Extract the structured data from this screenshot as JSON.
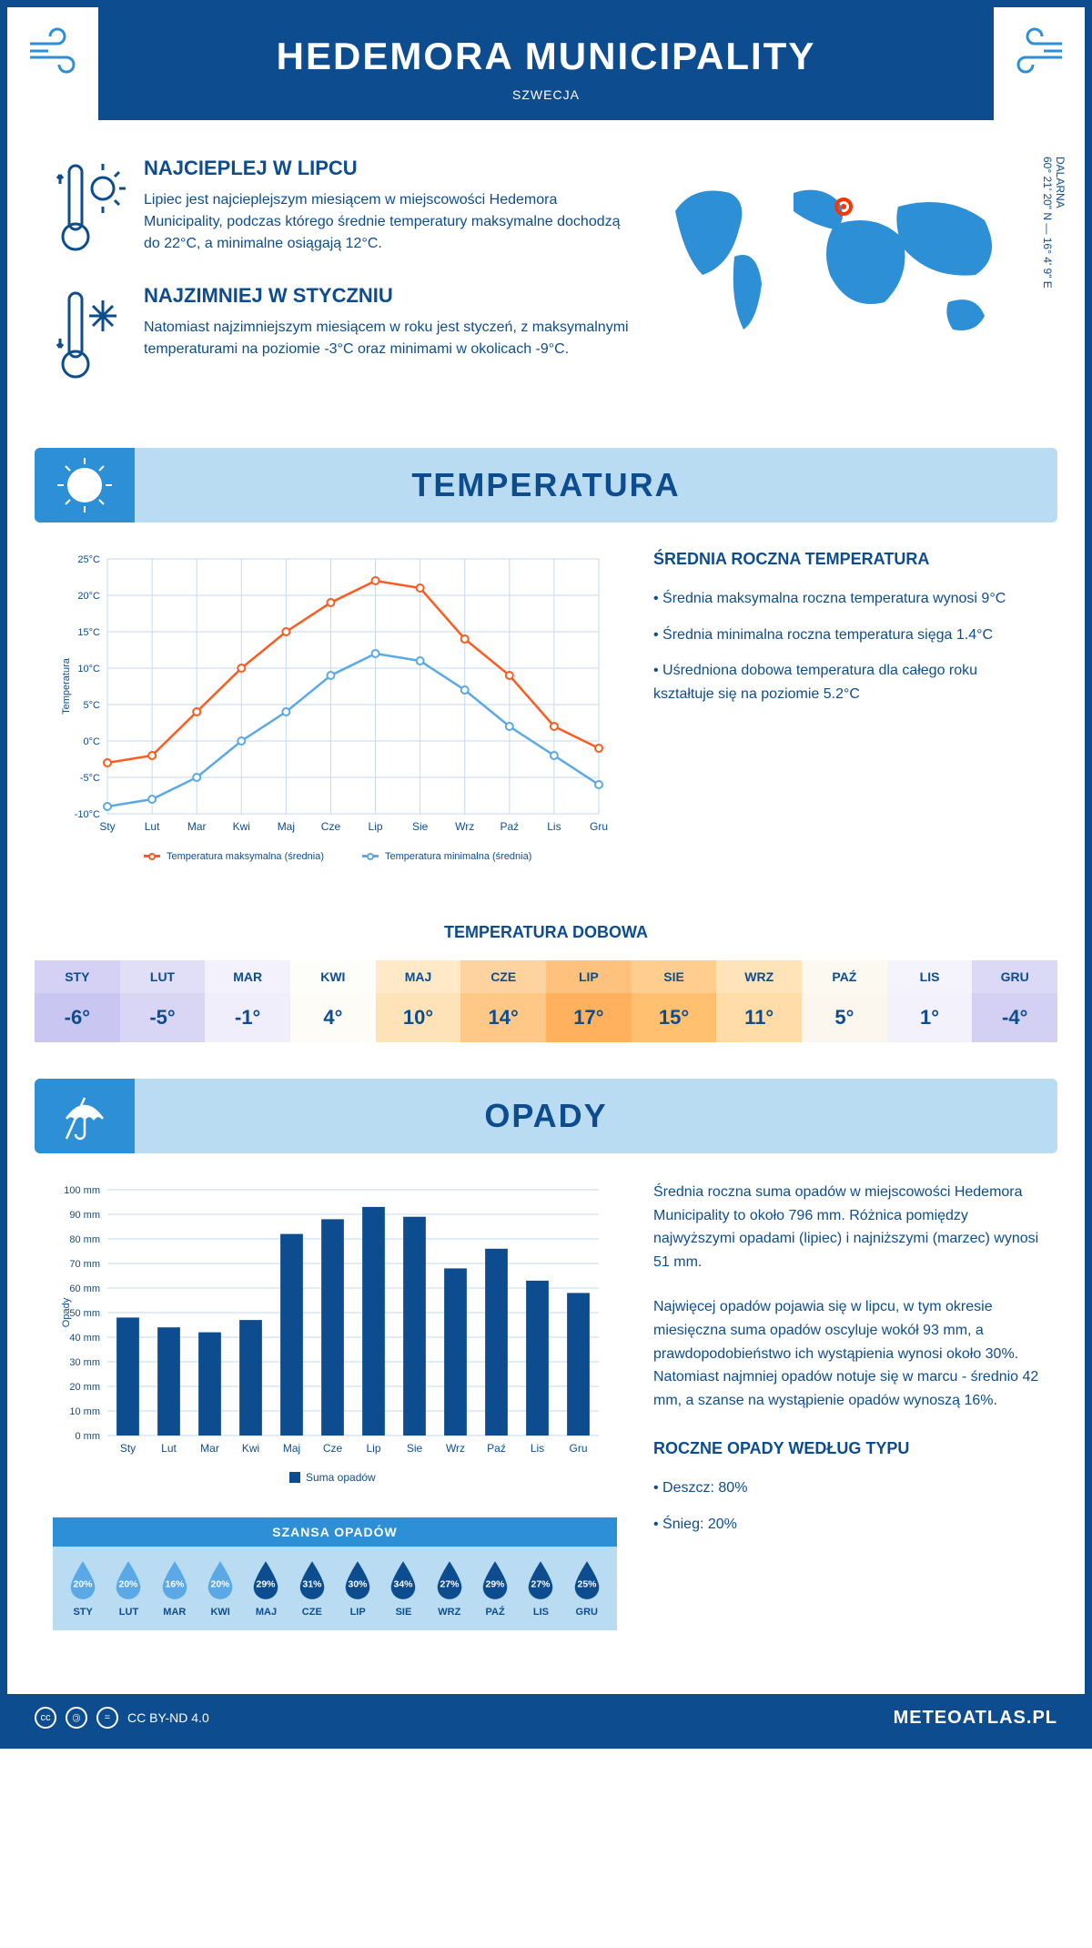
{
  "header": {
    "title": "HEDEMORA MUNICIPALITY",
    "subtitle": "SZWECJA"
  },
  "map": {
    "coords": "60° 21' 20\" N — 16° 4' 9\" E",
    "region": "DALARNA",
    "marker_color": "#ff3300",
    "land_color": "#2d8fd6"
  },
  "warm_block": {
    "title": "NAJCIEPLEJ W LIPCU",
    "text": "Lipiec jest najcieplejszym miesiącem w miejscowości Hedemora Municipality, podczas którego średnie temperatury maksymalne dochodzą do 22°C, a minimalne osiągają 12°C."
  },
  "cold_block": {
    "title": "NAJZIMNIEJ W STYCZNIU",
    "text": "Natomiast najzimniejszym miesiącem w roku jest styczeń, z maksymalnymi temperaturami na poziomie -3°C oraz minimami w okolicach -9°C."
  },
  "temp_section": {
    "title": "TEMPERATURA",
    "chart": {
      "months": [
        "Sty",
        "Lut",
        "Mar",
        "Kwi",
        "Maj",
        "Cze",
        "Lip",
        "Sie",
        "Wrz",
        "Paź",
        "Lis",
        "Gru"
      ],
      "max_values": [
        -3,
        -2,
        4,
        10,
        15,
        19,
        22,
        21,
        14,
        9,
        2,
        -1
      ],
      "min_values": [
        -9,
        -8,
        -5,
        0,
        4,
        9,
        12,
        11,
        7,
        2,
        -2,
        -6
      ],
      "max_color": "#ff5a1f",
      "min_color": "#5aa9e6",
      "grid_color": "#c6d9ee",
      "ylim": [
        -10,
        25
      ],
      "ytick_step": 5,
      "y_label": "Temperatura",
      "legend_max": "Temperatura maksymalna (średnia)",
      "legend_min": "Temperatura minimalna (średnia)"
    },
    "summary_title": "ŚREDNIA ROCZNA TEMPERATURA",
    "summary_items": [
      "• Średnia maksymalna roczna temperatura wynosi 9°C",
      "• Średnia minimalna roczna temperatura sięga 1.4°C",
      "• Uśredniona dobowa temperatura dla całego roku kształtuje się na poziomie 5.2°C"
    ],
    "daily_title": "TEMPERATURA DOBOWA",
    "daily": [
      {
        "m": "STY",
        "v": "-6°",
        "bg": "#c9c6f2"
      },
      {
        "m": "LUT",
        "v": "-5°",
        "bg": "#d9d6f5"
      },
      {
        "m": "MAR",
        "v": "-1°",
        "bg": "#f0eefb"
      },
      {
        "m": "KWI",
        "v": "4°",
        "bg": "#fdfcf7"
      },
      {
        "m": "MAJ",
        "v": "10°",
        "bg": "#ffe3b8"
      },
      {
        "m": "CZE",
        "v": "14°",
        "bg": "#ffc887"
      },
      {
        "m": "LIP",
        "v": "17°",
        "bg": "#ffb15e"
      },
      {
        "m": "SIE",
        "v": "15°",
        "bg": "#ffc070"
      },
      {
        "m": "WRZ",
        "v": "11°",
        "bg": "#ffdca8"
      },
      {
        "m": "PAŹ",
        "v": "5°",
        "bg": "#fbf7ee"
      },
      {
        "m": "LIS",
        "v": "1°",
        "bg": "#f3f1fb"
      },
      {
        "m": "GRU",
        "v": "-4°",
        "bg": "#d3d0f4"
      }
    ]
  },
  "precip_section": {
    "title": "OPADY",
    "chart": {
      "months": [
        "Sty",
        "Lut",
        "Mar",
        "Kwi",
        "Maj",
        "Cze",
        "Lip",
        "Sie",
        "Wrz",
        "Paź",
        "Lis",
        "Gru"
      ],
      "values": [
        48,
        44,
        42,
        47,
        82,
        88,
        93,
        89,
        68,
        76,
        63,
        58
      ],
      "bar_color": "#0d4d8f",
      "grid_color": "#c6d9ee",
      "ylim": [
        0,
        100
      ],
      "ytick_step": 10,
      "y_label": "Opady",
      "legend": "Suma opadów"
    },
    "text1": "Średnia roczna suma opadów w miejscowości Hedemora Municipality to około 796 mm. Różnica pomiędzy najwyższymi opadami (lipiec) i najniższymi (marzec) wynosi 51 mm.",
    "text2": "Najwięcej opadów pojawia się w lipcu, w tym okresie miesięczna suma opadów oscyluje wokół 93 mm, a prawdopodobieństwo ich wystąpienia wynosi około 30%. Natomiast najmniej opadów notuje się w marcu - średnio 42 mm, a szanse na wystąpienie opadów wynoszą 16%.",
    "chance_title": "SZANSA OPADÓW",
    "chance": [
      {
        "m": "STY",
        "v": "20%",
        "fill": "#5aa9e6"
      },
      {
        "m": "LUT",
        "v": "20%",
        "fill": "#5aa9e6"
      },
      {
        "m": "MAR",
        "v": "16%",
        "fill": "#5aa9e6"
      },
      {
        "m": "KWI",
        "v": "20%",
        "fill": "#5aa9e6"
      },
      {
        "m": "MAJ",
        "v": "29%",
        "fill": "#0d4d8f"
      },
      {
        "m": "CZE",
        "v": "31%",
        "fill": "#0d4d8f"
      },
      {
        "m": "LIP",
        "v": "30%",
        "fill": "#0d4d8f"
      },
      {
        "m": "SIE",
        "v": "34%",
        "fill": "#0d4d8f"
      },
      {
        "m": "WRZ",
        "v": "27%",
        "fill": "#0d4d8f"
      },
      {
        "m": "PAŹ",
        "v": "29%",
        "fill": "#0d4d8f"
      },
      {
        "m": "LIS",
        "v": "27%",
        "fill": "#0d4d8f"
      },
      {
        "m": "GRU",
        "v": "25%",
        "fill": "#0d4d8f"
      }
    ],
    "type_title": "ROCZNE OPADY WEDŁUG TYPU",
    "type_items": [
      "• Deszcz: 80%",
      "• Śnieg: 20%"
    ]
  },
  "footer": {
    "license": "CC BY-ND 4.0",
    "brand": "METEOATLAS.PL"
  }
}
